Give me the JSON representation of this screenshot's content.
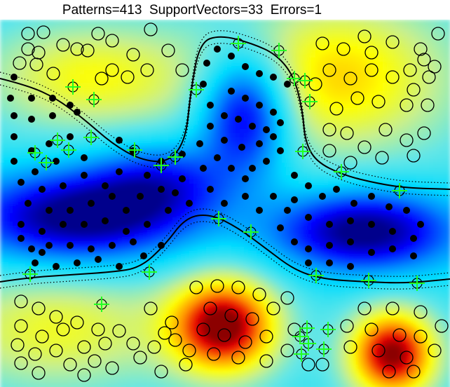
{
  "title": "Patterns=413  SupportVectors=33  Errors=1",
  "chart_data": {
    "type": "scatter",
    "title": "Patterns=413  SupportVectors=33  Errors=1",
    "xlim": [
      0,
      642
    ],
    "ylim": [
      28,
      552
    ],
    "grid": false,
    "legend": "none",
    "colormap_bumps": [
      {
        "x": 320,
        "y": 465,
        "amp": 1.0,
        "sx": 55,
        "sy": 50
      },
      {
        "x": 560,
        "y": 505,
        "amp": 1.0,
        "sx": 45,
        "sy": 45
      },
      {
        "x": 480,
        "y": 110,
        "amp": 0.55,
        "sx": 120,
        "sy": 80
      },
      {
        "x": 130,
        "y": 110,
        "amp": 0.45,
        "sx": 110,
        "sy": 55
      },
      {
        "x": 80,
        "y": 470,
        "amp": 0.42,
        "sx": 120,
        "sy": 60
      },
      {
        "x": 350,
        "y": 160,
        "amp": -0.85,
        "sx": 45,
        "sy": 60
      },
      {
        "x": 110,
        "y": 310,
        "amp": -0.9,
        "sx": 110,
        "sy": 45
      },
      {
        "x": 520,
        "y": 330,
        "amp": -0.9,
        "sx": 90,
        "sy": 40
      },
      {
        "x": 230,
        "y": 260,
        "amp": -0.5,
        "sx": 70,
        "sy": 40
      }
    ],
    "boundary": [
      [
        0,
        112
      ],
      [
        40,
        122
      ],
      [
        80,
        140
      ],
      [
        120,
        170
      ],
      [
        160,
        205
      ],
      [
        200,
        228
      ],
      [
        240,
        232
      ],
      [
        265,
        200
      ],
      [
        272,
        130
      ],
      [
        285,
        60
      ],
      [
        315,
        50
      ],
      [
        360,
        62
      ],
      [
        395,
        78
      ],
      [
        420,
        110
      ],
      [
        432,
        160
      ],
      [
        435,
        200
      ],
      [
        450,
        230
      ],
      [
        490,
        250
      ],
      [
        540,
        262
      ],
      [
        580,
        268
      ],
      [
        642,
        270
      ]
    ],
    "boundary_lower": [
      [
        0,
        402
      ],
      [
        40,
        396
      ],
      [
        100,
        392
      ],
      [
        160,
        388
      ],
      [
        200,
        382
      ],
      [
        235,
        350
      ],
      [
        265,
        310
      ],
      [
        300,
        305
      ],
      [
        340,
        325
      ],
      [
        380,
        355
      ],
      [
        420,
        385
      ],
      [
        460,
        398
      ],
      [
        520,
        402
      ],
      [
        580,
        404
      ],
      [
        642,
        398
      ]
    ],
    "margin_offset": 9,
    "class_positive": [
      [
        40,
        48
      ],
      [
        62,
        46
      ],
      [
        90,
        64
      ],
      [
        140,
        48
      ],
      [
        160,
        58
      ],
      [
        190,
        78
      ],
      [
        210,
        100
      ],
      [
        240,
        72
      ],
      [
        260,
        100
      ],
      [
        215,
        42
      ],
      [
        28,
        90
      ],
      [
        52,
        92
      ],
      [
        76,
        105
      ],
      [
        110,
        70
      ],
      [
        125,
        72
      ],
      [
        160,
        100
      ],
      [
        182,
        110
      ],
      [
        40,
        70
      ],
      [
        55,
        75
      ],
      [
        460,
        62
      ],
      [
        490,
        70
      ],
      [
        520,
        52
      ],
      [
        560,
        60
      ],
      [
        600,
        70
      ],
      [
        625,
        48
      ],
      [
        470,
        100
      ],
      [
        500,
        112
      ],
      [
        530,
        100
      ],
      [
        560,
        110
      ],
      [
        590,
        128
      ],
      [
        612,
        110
      ],
      [
        480,
        155
      ],
      [
        510,
        140
      ],
      [
        540,
        145
      ],
      [
        580,
        150
      ],
      [
        610,
        150
      ],
      [
        470,
        185
      ],
      [
        495,
        190
      ],
      [
        520,
        210
      ],
      [
        550,
        185
      ],
      [
        580,
        200
      ],
      [
        605,
        190
      ],
      [
        470,
        215
      ],
      [
        500,
        232
      ],
      [
        545,
        225
      ],
      [
        590,
        222
      ],
      [
        620,
        95
      ],
      [
        605,
        85
      ],
      [
        585,
        100
      ],
      [
        530,
        75
      ],
      [
        450,
        120
      ],
      [
        145,
        112
      ],
      [
        30,
        430
      ],
      [
        55,
        440
      ],
      [
        80,
        452
      ],
      [
        110,
        460
      ],
      [
        140,
        470
      ],
      [
        30,
        465
      ],
      [
        60,
        480
      ],
      [
        90,
        470
      ],
      [
        120,
        495
      ],
      [
        150,
        490
      ],
      [
        170,
        472
      ],
      [
        25,
        492
      ],
      [
        50,
        505
      ],
      [
        80,
        500
      ],
      [
        100,
        520
      ],
      [
        135,
        515
      ],
      [
        160,
        525
      ],
      [
        190,
        490
      ],
      [
        220,
        495
      ],
      [
        250,
        485
      ],
      [
        280,
        410
      ],
      [
        310,
        408
      ],
      [
        340,
        410
      ],
      [
        370,
        420
      ],
      [
        300,
        440
      ],
      [
        330,
        450
      ],
      [
        360,
        455
      ],
      [
        390,
        440
      ],
      [
        410,
        425
      ],
      [
        290,
        470
      ],
      [
        320,
        478
      ],
      [
        350,
        488
      ],
      [
        380,
        480
      ],
      [
        270,
        500
      ],
      [
        305,
        505
      ],
      [
        340,
        510
      ],
      [
        380,
        515
      ],
      [
        410,
        500
      ],
      [
        440,
        520
      ],
      [
        265,
        520
      ],
      [
        230,
        530
      ],
      [
        520,
        440
      ],
      [
        560,
        440
      ],
      [
        600,
        445
      ],
      [
        530,
        470
      ],
      [
        570,
        478
      ],
      [
        600,
        480
      ],
      [
        630,
        465
      ],
      [
        495,
        465
      ],
      [
        500,
        495
      ],
      [
        540,
        500
      ],
      [
        580,
        510
      ],
      [
        620,
        500
      ],
      [
        555,
        530
      ],
      [
        590,
        530
      ],
      [
        215,
        440
      ],
      [
        245,
        460
      ],
      [
        235,
        475
      ],
      [
        200,
        510
      ],
      [
        55,
        532
      ],
      [
        30,
        518
      ],
      [
        120,
        535
      ],
      [
        460,
        520
      ],
      [
        420,
        470
      ]
    ],
    "class_negative": [
      [
        15,
        140
      ],
      [
        45,
        140
      ],
      [
        75,
        140
      ],
      [
        100,
        150
      ],
      [
        20,
        165
      ],
      [
        45,
        170
      ],
      [
        75,
        165
      ],
      [
        110,
        160
      ],
      [
        20,
        195
      ],
      [
        45,
        215
      ],
      [
        70,
        205
      ],
      [
        100,
        195
      ],
      [
        120,
        225
      ],
      [
        80,
        230
      ],
      [
        50,
        245
      ],
      [
        20,
        230
      ],
      [
        30,
        260
      ],
      [
        60,
        270
      ],
      [
        90,
        265
      ],
      [
        120,
        250
      ],
      [
        150,
        265
      ],
      [
        170,
        245
      ],
      [
        160,
        280
      ],
      [
        130,
        290
      ],
      [
        100,
        300
      ],
      [
        70,
        300
      ],
      [
        40,
        290
      ],
      [
        30,
        320
      ],
      [
        60,
        330
      ],
      [
        90,
        320
      ],
      [
        120,
        320
      ],
      [
        150,
        315
      ],
      [
        180,
        300
      ],
      [
        200,
        280
      ],
      [
        210,
        250
      ],
      [
        230,
        230
      ],
      [
        260,
        220
      ],
      [
        230,
        270
      ],
      [
        250,
        275
      ],
      [
        260,
        255
      ],
      [
        290,
        240
      ],
      [
        300,
        270
      ],
      [
        270,
        290
      ],
      [
        240,
        300
      ],
      [
        210,
        320
      ],
      [
        190,
        345
      ],
      [
        160,
        350
      ],
      [
        130,
        355
      ],
      [
        100,
        350
      ],
      [
        70,
        350
      ],
      [
        45,
        355
      ],
      [
        50,
        375
      ],
      [
        80,
        380
      ],
      [
        110,
        375
      ],
      [
        140,
        370
      ],
      [
        170,
        380
      ],
      [
        30,
        340
      ],
      [
        60,
        360
      ],
      [
        295,
        90
      ],
      [
        310,
        70
      ],
      [
        330,
        80
      ],
      [
        350,
        95
      ],
      [
        370,
        105
      ],
      [
        390,
        110
      ],
      [
        410,
        120
      ],
      [
        330,
        130
      ],
      [
        350,
        140
      ],
      [
        370,
        150
      ],
      [
        390,
        160
      ],
      [
        400,
        175
      ],
      [
        390,
        195
      ],
      [
        370,
        205
      ],
      [
        345,
        210
      ],
      [
        320,
        200
      ],
      [
        300,
        180
      ],
      [
        300,
        150
      ],
      [
        320,
        165
      ],
      [
        340,
        170
      ],
      [
        360,
        180
      ],
      [
        380,
        185
      ],
      [
        290,
        120
      ],
      [
        285,
        205
      ],
      [
        310,
        225
      ],
      [
        330,
        240
      ],
      [
        350,
        255
      ],
      [
        380,
        230
      ],
      [
        400,
        215
      ],
      [
        420,
        250
      ],
      [
        440,
        265
      ],
      [
        460,
        280
      ],
      [
        480,
        270
      ],
      [
        505,
        290
      ],
      [
        530,
        280
      ],
      [
        555,
        295
      ],
      [
        580,
        300
      ],
      [
        600,
        320
      ],
      [
        590,
        340
      ],
      [
        560,
        330
      ],
      [
        530,
        320
      ],
      [
        500,
        315
      ],
      [
        470,
        320
      ],
      [
        440,
        310
      ],
      [
        410,
        300
      ],
      [
        400,
        325
      ],
      [
        420,
        345
      ],
      [
        440,
        355
      ],
      [
        470,
        350
      ],
      [
        500,
        345
      ],
      [
        530,
        360
      ],
      [
        560,
        355
      ],
      [
        590,
        365
      ],
      [
        470,
        375
      ],
      [
        500,
        380
      ],
      [
        440,
        375
      ],
      [
        420,
        285
      ],
      [
        350,
        280
      ],
      [
        320,
        290
      ],
      [
        370,
        300
      ],
      [
        390,
        280
      ],
      [
        360,
        240
      ],
      [
        205,
        365
      ],
      [
        180,
        330
      ],
      [
        230,
        350
      ],
      [
        20,
        110
      ],
      [
        170,
        200
      ],
      [
        190,
        215
      ]
    ],
    "support_vectors": [
      [
        340,
        62
      ],
      [
        398,
        72
      ],
      [
        420,
        112
      ],
      [
        435,
        115
      ],
      [
        442,
        145
      ],
      [
        280,
        128
      ],
      [
        104,
        124
      ],
      [
        134,
        142
      ],
      [
        130,
        196
      ],
      [
        82,
        200
      ],
      [
        98,
        214
      ],
      [
        50,
        218
      ],
      [
        66,
        232
      ],
      [
        192,
        214
      ],
      [
        230,
        236
      ],
      [
        250,
        224
      ],
      [
        432,
        216
      ],
      [
        487,
        245
      ],
      [
        570,
        272
      ],
      [
        312,
        312
      ],
      [
        358,
        331
      ],
      [
        213,
        388
      ],
      [
        43,
        391
      ],
      [
        451,
        393
      ],
      [
        526,
        400
      ],
      [
        595,
        404
      ],
      [
        145,
        434
      ],
      [
        438,
        468
      ],
      [
        468,
        470
      ],
      [
        440,
        490
      ],
      [
        428,
        480
      ],
      [
        462,
        498
      ],
      [
        430,
        505
      ]
    ]
  }
}
